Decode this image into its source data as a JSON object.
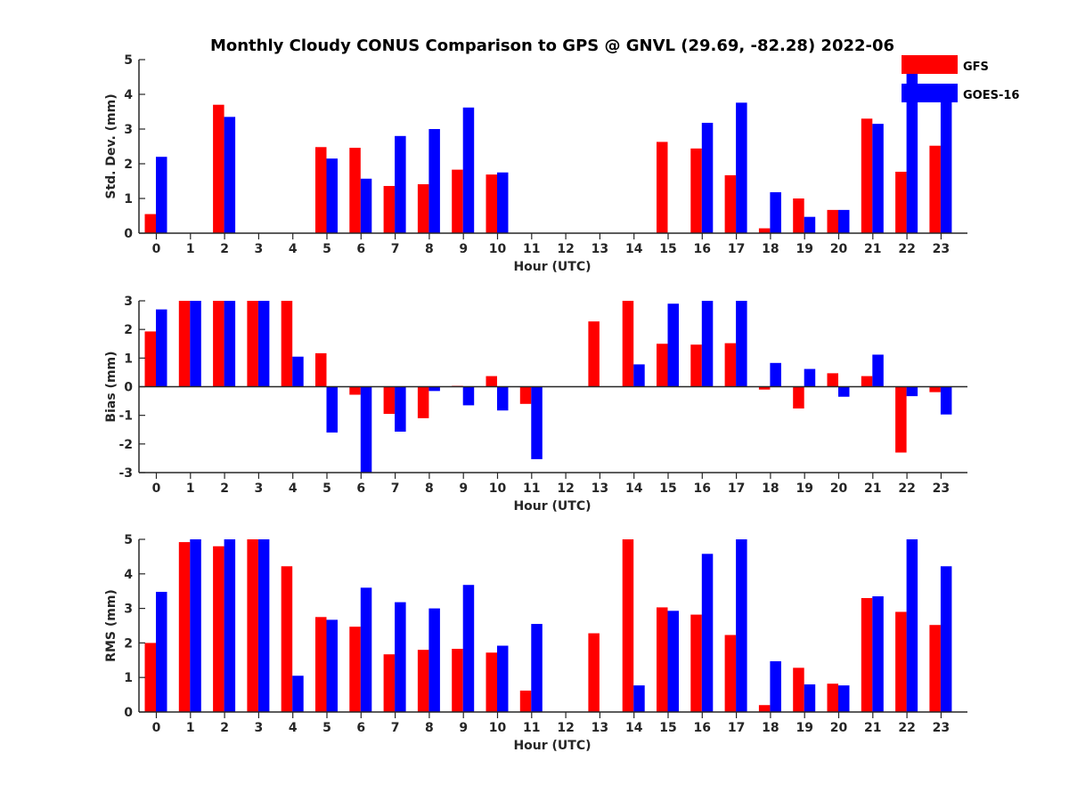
{
  "title": "Monthly Cloudy CONUS Comparison to GPS @ GNVL (29.69, -82.28) 2022-06",
  "legend": {
    "placement": "top-right",
    "entries": [
      {
        "name": "GFS",
        "color": "#ff0000"
      },
      {
        "name": "GOES-16",
        "color": "#0000ff"
      }
    ]
  },
  "chart_data": [
    {
      "type": "bar",
      "xlabel": "Hour (UTC)",
      "ylabel": "Std. Dev. (mm)",
      "ylim": [
        0,
        5
      ],
      "yticks": [
        0,
        1,
        2,
        3,
        4,
        5
      ],
      "categories": [
        "0",
        "1",
        "2",
        "3",
        "4",
        "5",
        "6",
        "7",
        "8",
        "9",
        "10",
        "11",
        "12",
        "13",
        "14",
        "15",
        "16",
        "17",
        "18",
        "19",
        "20",
        "21",
        "22",
        "23"
      ],
      "series": [
        {
          "name": "GFS",
          "color": "#ff0000",
          "values": [
            0.55,
            null,
            3.7,
            null,
            null,
            2.48,
            2.46,
            1.36,
            1.41,
            1.83,
            1.69,
            null,
            null,
            null,
            null,
            2.63,
            2.44,
            1.67,
            0.14,
            1.0,
            0.67,
            3.3,
            1.77,
            2.52
          ]
        },
        {
          "name": "GOES-16",
          "color": "#0000ff",
          "values": [
            2.2,
            null,
            3.35,
            null,
            null,
            2.15,
            1.57,
            2.8,
            3.0,
            3.62,
            1.75,
            null,
            null,
            null,
            null,
            null,
            3.18,
            3.76,
            1.18,
            0.47,
            0.67,
            3.15,
            5.0,
            3.9
          ]
        }
      ]
    },
    {
      "type": "bar",
      "xlabel": "Hour (UTC)",
      "ylabel": "Bias (mm)",
      "ylim": [
        -3,
        3
      ],
      "yticks": [
        -3,
        -2,
        -1,
        0,
        1,
        2,
        3
      ],
      "categories": [
        "0",
        "1",
        "2",
        "3",
        "4",
        "5",
        "6",
        "7",
        "8",
        "9",
        "10",
        "11",
        "12",
        "13",
        "14",
        "15",
        "16",
        "17",
        "18",
        "19",
        "20",
        "21",
        "22",
        "23"
      ],
      "series": [
        {
          "name": "GFS",
          "color": "#ff0000",
          "values": [
            1.93,
            3.0,
            3.0,
            3.0,
            3.0,
            1.17,
            -0.28,
            -0.95,
            -1.1,
            0.03,
            0.37,
            -0.6,
            null,
            2.28,
            3.0,
            1.5,
            1.47,
            1.52,
            -0.1,
            -0.76,
            0.47,
            0.37,
            -2.3,
            -0.19
          ]
        },
        {
          "name": "GOES-16",
          "color": "#0000ff",
          "values": [
            2.7,
            3.0,
            3.0,
            3.0,
            1.05,
            -1.6,
            -3.0,
            -1.57,
            -0.15,
            -0.65,
            -0.83,
            -2.53,
            null,
            null,
            0.78,
            2.9,
            3.0,
            3.0,
            0.83,
            0.62,
            -0.35,
            1.12,
            -0.33,
            -0.97
          ]
        }
      ]
    },
    {
      "type": "bar",
      "xlabel": "Hour (UTC)",
      "ylabel": "RMS (mm)",
      "ylim": [
        0,
        5
      ],
      "yticks": [
        0,
        1,
        2,
        3,
        4,
        5
      ],
      "categories": [
        "0",
        "1",
        "2",
        "3",
        "4",
        "5",
        "6",
        "7",
        "8",
        "9",
        "10",
        "11",
        "12",
        "13",
        "14",
        "15",
        "16",
        "17",
        "18",
        "19",
        "20",
        "21",
        "22",
        "23"
      ],
      "series": [
        {
          "name": "GFS",
          "color": "#ff0000",
          "values": [
            2.0,
            4.92,
            4.8,
            5.0,
            4.22,
            2.75,
            2.47,
            1.67,
            1.8,
            1.83,
            1.72,
            0.62,
            null,
            2.28,
            5.0,
            3.03,
            2.82,
            2.23,
            0.2,
            1.28,
            0.82,
            3.3,
            2.9,
            2.52
          ]
        },
        {
          "name": "GOES-16",
          "color": "#0000ff",
          "values": [
            3.48,
            5.0,
            5.0,
            5.0,
            1.05,
            2.67,
            3.6,
            3.18,
            3.0,
            3.68,
            1.92,
            2.55,
            null,
            null,
            0.77,
            2.93,
            4.58,
            5.0,
            1.47,
            0.8,
            0.77,
            3.35,
            5.0,
            4.22
          ]
        }
      ]
    }
  ]
}
